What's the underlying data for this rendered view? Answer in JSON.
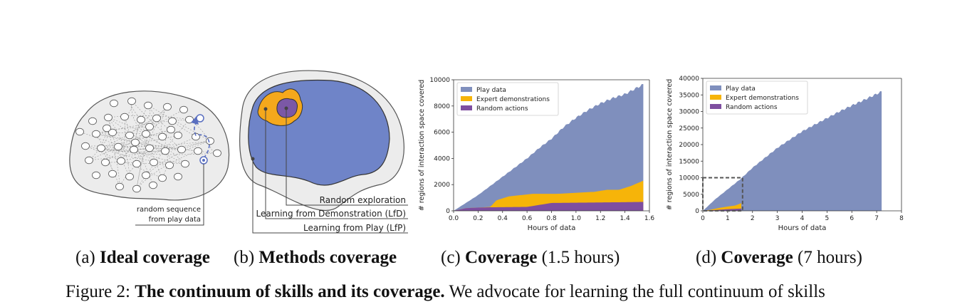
{
  "panel_a": {
    "annotation_line1": "random sequence",
    "annotation_line2": "from play data",
    "caption_prefix": "(a)",
    "caption_bold": "Ideal coverage"
  },
  "panel_b": {
    "label_random": "Random exploration",
    "label_lfd": "Learning from Demonstration (LfD)",
    "label_lfp": "Learning from Play (LfP)",
    "caption_prefix": "(b)",
    "caption_bold": "Methods coverage"
  },
  "panel_c": {
    "caption_prefix": "(c)",
    "caption_bold": "Coverage",
    "caption_suffix": "(1.5 hours)"
  },
  "panel_d": {
    "caption_prefix": "(d)",
    "caption_bold": "Coverage",
    "caption_suffix": "(7 hours)"
  },
  "figure_caption": {
    "prefix": "Figure 2:",
    "bold": "The continuum of skills and its coverage.",
    "rest": "We advocate for learning the full continuum of skills"
  },
  "colors": {
    "play": "#7f8fbd",
    "expert": "#f6b409",
    "random": "#7e4ea0",
    "blob_gray": "#e8e8e8",
    "blob_blue": "#6f84c8",
    "lfd_orange": "#f5a81c",
    "random_purple": "#7b58a6"
  },
  "chart_data": [
    {
      "type": "area",
      "xlabel": "Hours of data",
      "ylabel": "# regions of interaction space covered",
      "xlim": [
        0,
        1.6
      ],
      "ylim": [
        0,
        10000
      ],
      "xticks": [
        "0.0",
        "0.2",
        "0.4",
        "0.6",
        "0.8",
        "1.0",
        "1.2",
        "1.4",
        "1.6"
      ],
      "yticks": [
        "0",
        "2000",
        "4000",
        "6000",
        "8000",
        "10000"
      ],
      "legend": "top-left",
      "grid": false,
      "series": [
        {
          "name": "Play data",
          "x": [
            0,
            0.05,
            0.1,
            0.2,
            0.3,
            0.4,
            0.5,
            0.6,
            0.7,
            0.8,
            0.9,
            1.0,
            1.1,
            1.2,
            1.3,
            1.4,
            1.5,
            1.55
          ],
          "values": [
            0,
            300,
            600,
            1200,
            1900,
            2600,
            3300,
            4000,
            4800,
            5500,
            6400,
            7100,
            7700,
            8200,
            8600,
            8900,
            9400,
            9650
          ]
        },
        {
          "name": "Expert demonstrations",
          "x": [
            0,
            0.1,
            0.2,
            0.3,
            0.35,
            0.45,
            0.55,
            0.65,
            0.75,
            0.85,
            0.95,
            1.05,
            1.15,
            1.25,
            1.35,
            1.45,
            1.55
          ],
          "values": [
            0,
            200,
            250,
            300,
            800,
            1100,
            1200,
            1300,
            1300,
            1300,
            1350,
            1400,
            1450,
            1600,
            1600,
            1900,
            2300
          ]
        },
        {
          "name": "Random actions",
          "x": [
            0,
            0.1,
            0.2,
            0.3,
            0.4,
            0.6,
            0.7,
            0.8,
            1.0,
            1.2,
            1.4,
            1.55
          ],
          "values": [
            0,
            200,
            250,
            270,
            280,
            300,
            450,
            600,
            620,
            640,
            660,
            680
          ]
        }
      ]
    },
    {
      "type": "area",
      "xlabel": "Hours of data",
      "ylabel": "# regions of interaction space covered",
      "xlim": [
        0,
        8
      ],
      "ylim": [
        0,
        40000
      ],
      "xticks": [
        "0",
        "1",
        "2",
        "3",
        "4",
        "5",
        "6",
        "7",
        "8"
      ],
      "yticks": [
        "0",
        "5000",
        "10000",
        "15000",
        "20000",
        "25000",
        "30000",
        "35000",
        "40000"
      ],
      "legend": "top-left",
      "grid": false,
      "series": [
        {
          "name": "Play data",
          "x": [
            0,
            0.5,
            1,
            1.5,
            2,
            2.5,
            3,
            3.5,
            4,
            4.5,
            5,
            5.5,
            6,
            6.5,
            7,
            7.2
          ],
          "values": [
            0,
            3500,
            6500,
            9500,
            13000,
            16000,
            19000,
            21500,
            24000,
            26000,
            28000,
            30000,
            31800,
            33500,
            35300,
            36000
          ]
        },
        {
          "name": "Expert demonstrations",
          "x": [
            0,
            0.3,
            0.6,
            1.0,
            1.3,
            1.55
          ],
          "values": [
            0,
            300,
            800,
            1300,
            1600,
            2300
          ]
        },
        {
          "name": "Random actions",
          "x": [
            0,
            0.5,
            1.0,
            1.55
          ],
          "values": [
            0,
            250,
            500,
            680
          ]
        }
      ],
      "annotation": {
        "type": "dashed-box",
        "x": [
          0,
          1.6
        ],
        "y": [
          0,
          10000
        ]
      }
    }
  ]
}
